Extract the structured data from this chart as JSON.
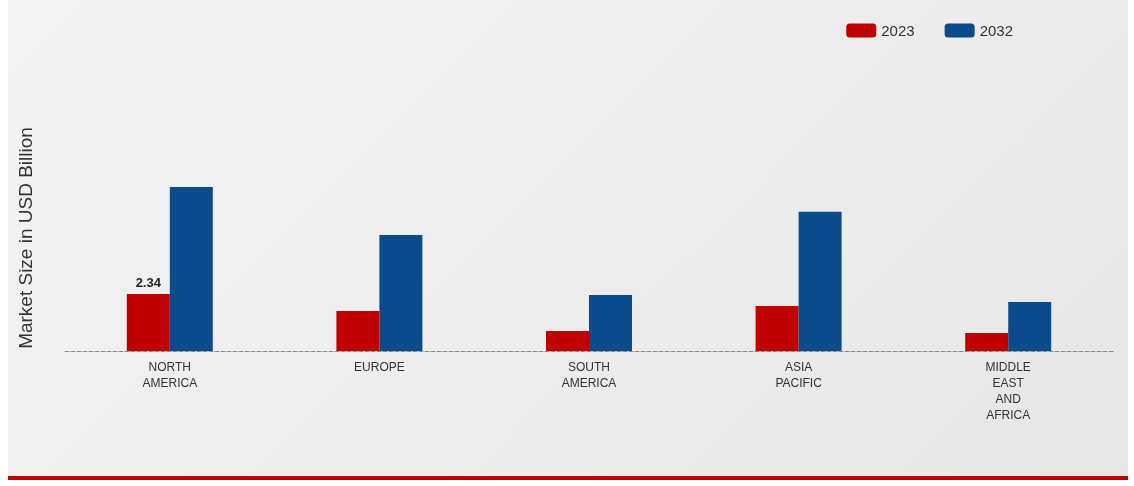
{
  "chart_data": {
    "type": "bar",
    "ylabel": "Market Size in USD Billion",
    "categories": [
      "NORTH AMERICA",
      "EUROPE",
      "SOUTH AMERICA",
      "ASIA PACIFIC",
      "MIDDLE EAST AND AFRICA"
    ],
    "series": [
      {
        "name": "2023",
        "color": "#c00000",
        "values": [
          2.34,
          1.64,
          0.82,
          1.85,
          0.74
        ],
        "value_labels": [
          "2.34",
          null,
          null,
          null,
          null
        ]
      },
      {
        "name": "2032",
        "color": "#0b4a8b",
        "values": [
          6.73,
          4.76,
          2.3,
          5.71,
          2.01
        ]
      }
    ],
    "legend": "top right"
  }
}
